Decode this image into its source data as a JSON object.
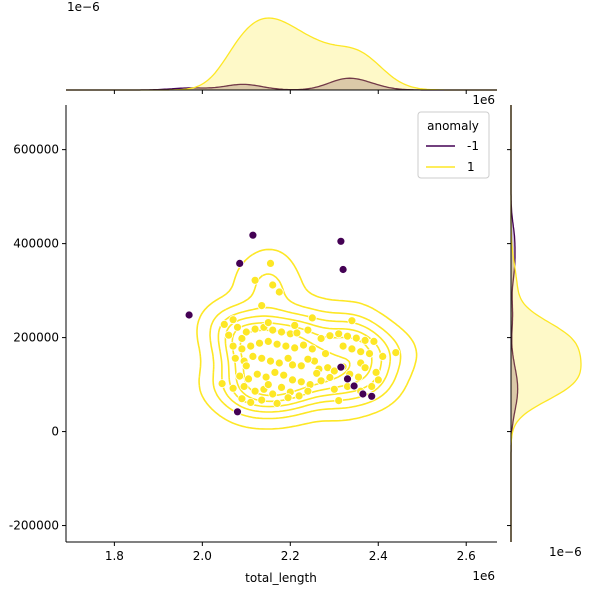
{
  "chart_data": {
    "type": "scatter",
    "title": "",
    "xlabel": "total_length",
    "ylabel": "",
    "x_offset_text": "1e6",
    "y_offset_text": "1e6",
    "top_marginal_offset_text": "1e−6",
    "right_marginal_offset_text": "1e−6",
    "xlim": [
      1.69,
      2.67
    ],
    "ylim": [
      -235000,
      695000
    ],
    "x_ticks": [
      1.8,
      2.0,
      2.2,
      2.4,
      2.6
    ],
    "x_tick_labels": [
      "1.8",
      "2.0",
      "2.2",
      "2.4",
      "2.6"
    ],
    "y_ticks": [
      -200000,
      0,
      200000,
      400000,
      600000
    ],
    "y_tick_labels": [
      "-200000",
      "0",
      "200000",
      "400000",
      "600000"
    ],
    "grid": false,
    "legend": {
      "title": "anomaly",
      "placement": "top-right",
      "entries": [
        {
          "label": "-1",
          "color": "#440154"
        },
        {
          "label": "1",
          "color": "#fde725"
        }
      ]
    },
    "series": [
      {
        "name": "-1",
        "color": "#440154",
        "points": [
          [
            1.97,
            248000
          ],
          [
            2.115,
            418000
          ],
          [
            2.085,
            358000
          ],
          [
            2.315,
            405000
          ],
          [
            2.32,
            345000
          ],
          [
            2.315,
            137000
          ],
          [
            2.33,
            112000
          ],
          [
            2.345,
            97000
          ],
          [
            2.365,
            80000
          ],
          [
            2.385,
            75000
          ],
          [
            2.08,
            42000
          ]
        ]
      },
      {
        "name": "1",
        "color": "#fde725",
        "points": [
          [
            2.155,
            358000
          ],
          [
            2.12,
            322000
          ],
          [
            2.16,
            312000
          ],
          [
            2.175,
            297000
          ],
          [
            2.135,
            268000
          ],
          [
            2.25,
            242000
          ],
          [
            2.34,
            236000
          ],
          [
            2.05,
            228000
          ],
          [
            2.07,
            238000
          ],
          [
            2.08,
            222000
          ],
          [
            2.06,
            205000
          ],
          [
            2.09,
            198000
          ],
          [
            2.1,
            212000
          ],
          [
            2.12,
            218000
          ],
          [
            2.14,
            222000
          ],
          [
            2.16,
            216000
          ],
          [
            2.18,
            212000
          ],
          [
            2.2,
            208000
          ],
          [
            2.215,
            210000
          ],
          [
            2.24,
            216000
          ],
          [
            2.27,
            198000
          ],
          [
            2.29,
            204000
          ],
          [
            2.31,
            208000
          ],
          [
            2.33,
            203000
          ],
          [
            2.35,
            199000
          ],
          [
            2.37,
            194000
          ],
          [
            2.39,
            192000
          ],
          [
            2.07,
            182000
          ],
          [
            2.09,
            176000
          ],
          [
            2.11,
            182000
          ],
          [
            2.13,
            188000
          ],
          [
            2.15,
            192000
          ],
          [
            2.17,
            186000
          ],
          [
            2.19,
            182000
          ],
          [
            2.21,
            178000
          ],
          [
            2.23,
            184000
          ],
          [
            2.25,
            176000
          ],
          [
            2.28,
            166000
          ],
          [
            2.32,
            182000
          ],
          [
            2.34,
            176000
          ],
          [
            2.36,
            170000
          ],
          [
            2.38,
            166000
          ],
          [
            2.41,
            160000
          ],
          [
            2.44,
            168000
          ],
          [
            2.075,
            156000
          ],
          [
            2.095,
            150000
          ],
          [
            2.115,
            160000
          ],
          [
            2.135,
            156000
          ],
          [
            2.155,
            150000
          ],
          [
            2.175,
            146000
          ],
          [
            2.195,
            156000
          ],
          [
            2.205,
            142000
          ],
          [
            2.225,
            140000
          ],
          [
            2.255,
            150000
          ],
          [
            2.265,
            133000
          ],
          [
            2.285,
            136000
          ],
          [
            2.3,
            129000
          ],
          [
            2.32,
            138000
          ],
          [
            2.36,
            146000
          ],
          [
            2.37,
            136000
          ],
          [
            2.395,
            126000
          ],
          [
            2.085,
            118000
          ],
          [
            2.105,
            112000
          ],
          [
            2.125,
            122000
          ],
          [
            2.145,
            116000
          ],
          [
            2.165,
            126000
          ],
          [
            2.185,
            120000
          ],
          [
            2.205,
            110000
          ],
          [
            2.225,
            106000
          ],
          [
            2.245,
            100000
          ],
          [
            2.27,
            108000
          ],
          [
            2.29,
            115000
          ],
          [
            2.335,
            122000
          ],
          [
            2.355,
            116000
          ],
          [
            2.4,
            110000
          ],
          [
            2.045,
            102000
          ],
          [
            2.07,
            92000
          ],
          [
            2.095,
            96000
          ],
          [
            2.12,
            86000
          ],
          [
            2.14,
            90000
          ],
          [
            2.16,
            80000
          ],
          [
            2.18,
            94000
          ],
          [
            2.2,
            84000
          ],
          [
            2.22,
            76000
          ],
          [
            2.24,
            86000
          ],
          [
            2.3,
            90000
          ],
          [
            2.33,
            96000
          ],
          [
            2.36,
            86000
          ],
          [
            2.385,
            96000
          ],
          [
            2.09,
            70000
          ],
          [
            2.11,
            62000
          ],
          [
            2.135,
            67000
          ],
          [
            2.17,
            60000
          ],
          [
            2.195,
            72000
          ],
          [
            2.31,
            66000
          ],
          [
            2.15,
            232000
          ],
          [
            2.21,
            226000
          ],
          [
            2.1,
            140000
          ],
          [
            2.24,
            154000
          ],
          [
            2.26,
            124000
          ],
          [
            2.15,
            100000
          ]
        ]
      }
    ]
  }
}
